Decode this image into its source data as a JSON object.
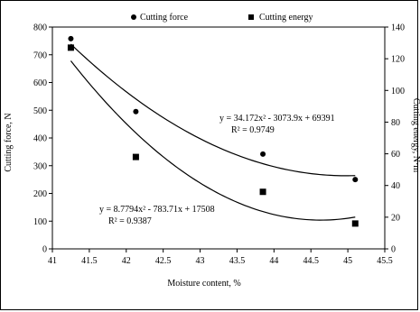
{
  "chart_data": {
    "type": "scatter",
    "xlabel": "Moisture content, %",
    "ylabel_left": "Cutting force, N",
    "ylabel_right": "Cutting energy, N·m",
    "xlim": [
      41,
      45.5
    ],
    "ylim_left": [
      0,
      800
    ],
    "ylim_right": [
      0,
      140
    ],
    "x_ticks": [
      "41",
      "41.5",
      "42",
      "42.5",
      "43",
      "43.5",
      "44",
      "44.5",
      "45",
      "45.5"
    ],
    "y_left_ticks": [
      "0",
      "100",
      "200",
      "300",
      "400",
      "500",
      "600",
      "700",
      "800"
    ],
    "y_right_ticks": [
      "0",
      "20",
      "40",
      "60",
      "80",
      "100",
      "120",
      "140"
    ],
    "legend_position": "top",
    "series": [
      {
        "name": "Cutting force",
        "axis": "left",
        "marker": "circle",
        "x": [
          41.25,
          42.13,
          43.85,
          45.1
        ],
        "y": [
          758,
          495,
          342,
          250
        ],
        "trendline": {
          "a": 34.172,
          "b": -3073.9,
          "c": 69391
        },
        "equation": "y = 34.172x² - 3073.9x + 69391",
        "r2": "R² = 0.9749"
      },
      {
        "name": "Cutting energy",
        "axis": "right",
        "marker": "square",
        "x": [
          41.25,
          42.13,
          43.85,
          45.1
        ],
        "y": [
          127,
          58,
          36,
          16
        ],
        "trendline": {
          "a": 8.7794,
          "b": -783.71,
          "c": 17508
        },
        "equation": "y = 8.7794x² - 783.71x + 17508",
        "r2": "R² = 0.9387"
      }
    ]
  }
}
